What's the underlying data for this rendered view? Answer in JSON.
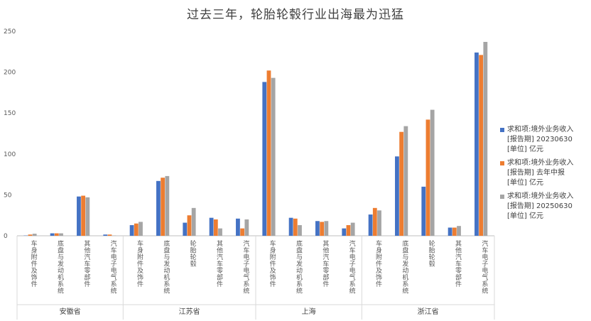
{
  "chart_data": {
    "type": "bar",
    "title": "过去三年，轮胎轮毂行业出海最为迅猛",
    "xlabel": "",
    "ylabel": "",
    "ylim": [
      0,
      250
    ],
    "yticks": [
      0,
      50,
      100,
      150,
      200,
      250
    ],
    "grid": false,
    "legend_position": "right",
    "groups": [
      {
        "label": "安徽省",
        "categories": [
          "车身附件及饰件",
          "底盘与发动机系统",
          "其他汽车零部件",
          "汽车电子电气系统"
        ]
      },
      {
        "label": "江苏省",
        "categories": [
          "车身附件及饰件",
          "底盘与发动机系统",
          "轮胎轮毂",
          "其他汽车零部件",
          "汽车电子电气系统"
        ]
      },
      {
        "label": "上海",
        "categories": [
          "车身附件及饰件",
          "底盘与发动机系统",
          "其他汽车零部件",
          "汽车电子电气系统"
        ]
      },
      {
        "label": "浙江省",
        "categories": [
          "车身附件及饰件",
          "底盘与发动机系统",
          "轮胎轮毂",
          "其他汽车零部件",
          "汽车电子电气系统"
        ]
      }
    ],
    "series": [
      {
        "name": "求和项:境外业务收入 [报告期] 20230630 [单位] 亿元",
        "legend_lines": [
          "求和项:境外业务收入",
          "[报告期] 20230630",
          "[单位] 亿元"
        ],
        "color": "#4472C4",
        "values": [
          0.3,
          3,
          48,
          1.5,
          13,
          67,
          16,
          22,
          21,
          188,
          22,
          18,
          9,
          26,
          97,
          60,
          10,
          224
        ]
      },
      {
        "name": "求和项:境外业务收入 [报告期] 去年中报 [单位] 亿元",
        "legend_lines": [
          "求和项:境外业务收入",
          "[报告期] 去年中报",
          "[单位] 亿元"
        ],
        "color": "#ED7D31",
        "values": [
          1.5,
          3,
          49,
          1.5,
          15,
          71,
          25,
          20,
          9,
          202,
          21,
          17,
          13,
          34,
          127,
          142,
          10,
          221
        ]
      },
      {
        "name": "求和项:境外业务收入 [报告期] 20250630 [单位] 亿元",
        "legend_lines": [
          "求和项:境外业务收入",
          "[报告期] 20250630",
          "[单位] 亿元"
        ],
        "color": "#A5A5A5",
        "values": [
          2.5,
          3,
          47,
          0.3,
          17,
          73,
          34,
          9,
          20,
          193,
          13,
          18,
          16,
          31,
          134,
          154,
          12,
          237
        ]
      }
    ]
  }
}
